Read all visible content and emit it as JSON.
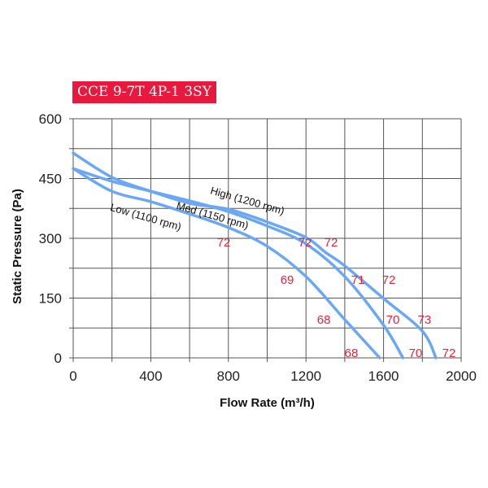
{
  "chart_data": {
    "type": "line",
    "title": "CCE 9-7T 4P-1 3SY",
    "xlabel": "Flow Rate (m³/h)",
    "ylabel": "Static Pressure (Pa)",
    "xlim": [
      0,
      2000
    ],
    "ylim": [
      0,
      600
    ],
    "xticks": [
      0,
      400,
      800,
      1200,
      1600,
      2000
    ],
    "yticks": [
      0,
      150,
      300,
      450,
      600
    ],
    "grid": true,
    "grid_x_step": 200,
    "grid_y_step": 75,
    "line_color": "#6aa8f5",
    "annotation_color": "#e8243c",
    "title_bg": "#e8193c",
    "series": [
      {
        "name": "High (1200 rpm)",
        "x": [
          0,
          200,
          400,
          600,
          800,
          1000,
          1200,
          1300,
          1400,
          1600,
          1800,
          1870
        ],
        "y": [
          514,
          453,
          418,
          388,
          373,
          341,
          302,
          265,
          231,
          149,
          67,
          0
        ]
      },
      {
        "name": "Med (1150 rpm)",
        "x": [
          0,
          200,
          400,
          600,
          800,
          1000,
          1200,
          1400,
          1600,
          1700
        ],
        "y": [
          475,
          443,
          418,
          394,
          367,
          331,
          286,
          204,
          82,
          0
        ]
      },
      {
        "name": "Low (1100 rpm)",
        "x": [
          0,
          200,
          400,
          600,
          800,
          1000,
          1200,
          1400,
          1580
        ],
        "y": [
          475,
          418,
          392,
          361,
          327,
          280,
          204,
          96,
          0
        ]
      }
    ],
    "series_labels": [
      {
        "text": "High (1200 rpm)",
        "x": 893,
        "y": 394
      },
      {
        "text": "Med (1150 rpm)",
        "x": 713,
        "y": 357
      },
      {
        "text": "Low (1100 rpm)",
        "x": 369,
        "y": 353
      }
    ],
    "annotations": [
      {
        "text": "72",
        "x": 776,
        "y": 292
      },
      {
        "text": "72",
        "x": 1195,
        "y": 292
      },
      {
        "text": "72",
        "x": 1329,
        "y": 292
      },
      {
        "text": "69",
        "x": 1103,
        "y": 198
      },
      {
        "text": "71",
        "x": 1468,
        "y": 198
      },
      {
        "text": "72",
        "x": 1627,
        "y": 198
      },
      {
        "text": "68",
        "x": 1292,
        "y": 98
      },
      {
        "text": "70",
        "x": 1648,
        "y": 98
      },
      {
        "text": "73",
        "x": 1811,
        "y": 98
      },
      {
        "text": "68",
        "x": 1434,
        "y": 14
      },
      {
        "text": "70",
        "x": 1765,
        "y": 14
      },
      {
        "text": "72",
        "x": 1937,
        "y": 14
      }
    ]
  }
}
